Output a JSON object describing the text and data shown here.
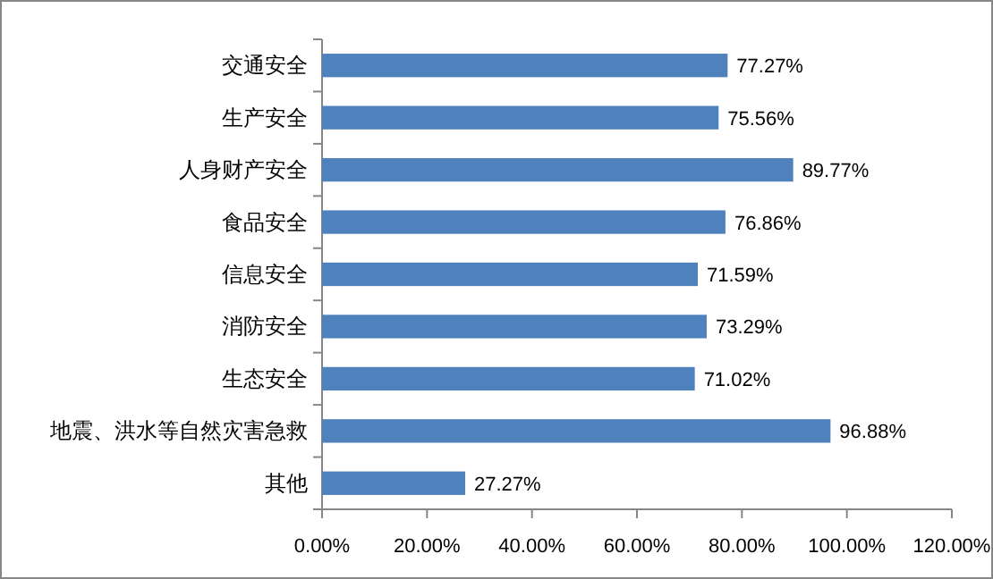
{
  "chart_data": {
    "type": "bar",
    "orientation": "horizontal",
    "categories": [
      "交通安全",
      "生产安全",
      "人身财产安全",
      "食品安全",
      "信息安全",
      "消防安全",
      "生态安全",
      "地震、洪水等自然灾害急救",
      "其他"
    ],
    "series": [
      {
        "color": "#4f81bd",
        "values": [
          77.27,
          75.56,
          89.77,
          76.86,
          71.59,
          73.29,
          71.02,
          96.88,
          27.27
        ],
        "value_labels": [
          "77.27%",
          "75.56%",
          "89.77%",
          "76.86%",
          "71.59%",
          "73.29%",
          "71.02%",
          "96.88%",
          "27.27%"
        ]
      }
    ],
    "xlim": [
      0,
      120
    ],
    "xticks": [
      {
        "value": 0,
        "label": "0.00%"
      },
      {
        "value": 20,
        "label": "20.00%"
      },
      {
        "value": 40,
        "label": "40.00%"
      },
      {
        "value": 60,
        "label": "60.00%"
      },
      {
        "value": 80,
        "label": "80.00%"
      },
      {
        "value": 100,
        "label": "100.00%"
      },
      {
        "value": 120,
        "label": "120.00%"
      }
    ],
    "grid": false
  }
}
